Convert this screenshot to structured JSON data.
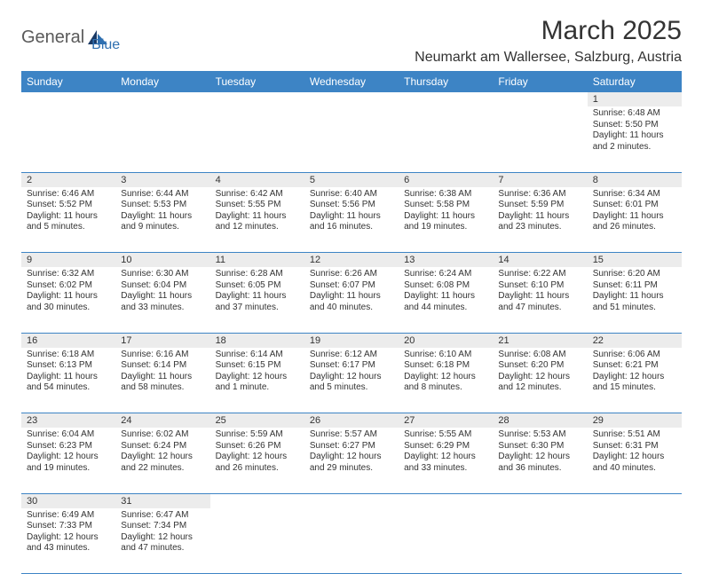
{
  "logo": {
    "part1": "General",
    "part2": "Blue"
  },
  "title": "March 2025",
  "location": "Neumarkt am Wallersee, Salzburg, Austria",
  "colors": {
    "header_bg": "#3d84c5",
    "header_fg": "#ffffff",
    "daynum_bg": "#ececec",
    "border": "#3d84c5",
    "logo_gray": "#5a5a5a",
    "logo_blue": "#2f6fb0"
  },
  "weekdays": [
    "Sunday",
    "Monday",
    "Tuesday",
    "Wednesday",
    "Thursday",
    "Friday",
    "Saturday"
  ],
  "weeks": [
    [
      null,
      null,
      null,
      null,
      null,
      null,
      {
        "n": "1",
        "sr": "Sunrise: 6:48 AM",
        "ss": "Sunset: 5:50 PM",
        "d1": "Daylight: 11 hours",
        "d2": "and 2 minutes."
      }
    ],
    [
      {
        "n": "2",
        "sr": "Sunrise: 6:46 AM",
        "ss": "Sunset: 5:52 PM",
        "d1": "Daylight: 11 hours",
        "d2": "and 5 minutes."
      },
      {
        "n": "3",
        "sr": "Sunrise: 6:44 AM",
        "ss": "Sunset: 5:53 PM",
        "d1": "Daylight: 11 hours",
        "d2": "and 9 minutes."
      },
      {
        "n": "4",
        "sr": "Sunrise: 6:42 AM",
        "ss": "Sunset: 5:55 PM",
        "d1": "Daylight: 11 hours",
        "d2": "and 12 minutes."
      },
      {
        "n": "5",
        "sr": "Sunrise: 6:40 AM",
        "ss": "Sunset: 5:56 PM",
        "d1": "Daylight: 11 hours",
        "d2": "and 16 minutes."
      },
      {
        "n": "6",
        "sr": "Sunrise: 6:38 AM",
        "ss": "Sunset: 5:58 PM",
        "d1": "Daylight: 11 hours",
        "d2": "and 19 minutes."
      },
      {
        "n": "7",
        "sr": "Sunrise: 6:36 AM",
        "ss": "Sunset: 5:59 PM",
        "d1": "Daylight: 11 hours",
        "d2": "and 23 minutes."
      },
      {
        "n": "8",
        "sr": "Sunrise: 6:34 AM",
        "ss": "Sunset: 6:01 PM",
        "d1": "Daylight: 11 hours",
        "d2": "and 26 minutes."
      }
    ],
    [
      {
        "n": "9",
        "sr": "Sunrise: 6:32 AM",
        "ss": "Sunset: 6:02 PM",
        "d1": "Daylight: 11 hours",
        "d2": "and 30 minutes."
      },
      {
        "n": "10",
        "sr": "Sunrise: 6:30 AM",
        "ss": "Sunset: 6:04 PM",
        "d1": "Daylight: 11 hours",
        "d2": "and 33 minutes."
      },
      {
        "n": "11",
        "sr": "Sunrise: 6:28 AM",
        "ss": "Sunset: 6:05 PM",
        "d1": "Daylight: 11 hours",
        "d2": "and 37 minutes."
      },
      {
        "n": "12",
        "sr": "Sunrise: 6:26 AM",
        "ss": "Sunset: 6:07 PM",
        "d1": "Daylight: 11 hours",
        "d2": "and 40 minutes."
      },
      {
        "n": "13",
        "sr": "Sunrise: 6:24 AM",
        "ss": "Sunset: 6:08 PM",
        "d1": "Daylight: 11 hours",
        "d2": "and 44 minutes."
      },
      {
        "n": "14",
        "sr": "Sunrise: 6:22 AM",
        "ss": "Sunset: 6:10 PM",
        "d1": "Daylight: 11 hours",
        "d2": "and 47 minutes."
      },
      {
        "n": "15",
        "sr": "Sunrise: 6:20 AM",
        "ss": "Sunset: 6:11 PM",
        "d1": "Daylight: 11 hours",
        "d2": "and 51 minutes."
      }
    ],
    [
      {
        "n": "16",
        "sr": "Sunrise: 6:18 AM",
        "ss": "Sunset: 6:13 PM",
        "d1": "Daylight: 11 hours",
        "d2": "and 54 minutes."
      },
      {
        "n": "17",
        "sr": "Sunrise: 6:16 AM",
        "ss": "Sunset: 6:14 PM",
        "d1": "Daylight: 11 hours",
        "d2": "and 58 minutes."
      },
      {
        "n": "18",
        "sr": "Sunrise: 6:14 AM",
        "ss": "Sunset: 6:15 PM",
        "d1": "Daylight: 12 hours",
        "d2": "and 1 minute."
      },
      {
        "n": "19",
        "sr": "Sunrise: 6:12 AM",
        "ss": "Sunset: 6:17 PM",
        "d1": "Daylight: 12 hours",
        "d2": "and 5 minutes."
      },
      {
        "n": "20",
        "sr": "Sunrise: 6:10 AM",
        "ss": "Sunset: 6:18 PM",
        "d1": "Daylight: 12 hours",
        "d2": "and 8 minutes."
      },
      {
        "n": "21",
        "sr": "Sunrise: 6:08 AM",
        "ss": "Sunset: 6:20 PM",
        "d1": "Daylight: 12 hours",
        "d2": "and 12 minutes."
      },
      {
        "n": "22",
        "sr": "Sunrise: 6:06 AM",
        "ss": "Sunset: 6:21 PM",
        "d1": "Daylight: 12 hours",
        "d2": "and 15 minutes."
      }
    ],
    [
      {
        "n": "23",
        "sr": "Sunrise: 6:04 AM",
        "ss": "Sunset: 6:23 PM",
        "d1": "Daylight: 12 hours",
        "d2": "and 19 minutes."
      },
      {
        "n": "24",
        "sr": "Sunrise: 6:02 AM",
        "ss": "Sunset: 6:24 PM",
        "d1": "Daylight: 12 hours",
        "d2": "and 22 minutes."
      },
      {
        "n": "25",
        "sr": "Sunrise: 5:59 AM",
        "ss": "Sunset: 6:26 PM",
        "d1": "Daylight: 12 hours",
        "d2": "and 26 minutes."
      },
      {
        "n": "26",
        "sr": "Sunrise: 5:57 AM",
        "ss": "Sunset: 6:27 PM",
        "d1": "Daylight: 12 hours",
        "d2": "and 29 minutes."
      },
      {
        "n": "27",
        "sr": "Sunrise: 5:55 AM",
        "ss": "Sunset: 6:29 PM",
        "d1": "Daylight: 12 hours",
        "d2": "and 33 minutes."
      },
      {
        "n": "28",
        "sr": "Sunrise: 5:53 AM",
        "ss": "Sunset: 6:30 PM",
        "d1": "Daylight: 12 hours",
        "d2": "and 36 minutes."
      },
      {
        "n": "29",
        "sr": "Sunrise: 5:51 AM",
        "ss": "Sunset: 6:31 PM",
        "d1": "Daylight: 12 hours",
        "d2": "and 40 minutes."
      }
    ],
    [
      {
        "n": "30",
        "sr": "Sunrise: 6:49 AM",
        "ss": "Sunset: 7:33 PM",
        "d1": "Daylight: 12 hours",
        "d2": "and 43 minutes."
      },
      {
        "n": "31",
        "sr": "Sunrise: 6:47 AM",
        "ss": "Sunset: 7:34 PM",
        "d1": "Daylight: 12 hours",
        "d2": "and 47 minutes."
      },
      null,
      null,
      null,
      null,
      null
    ]
  ]
}
